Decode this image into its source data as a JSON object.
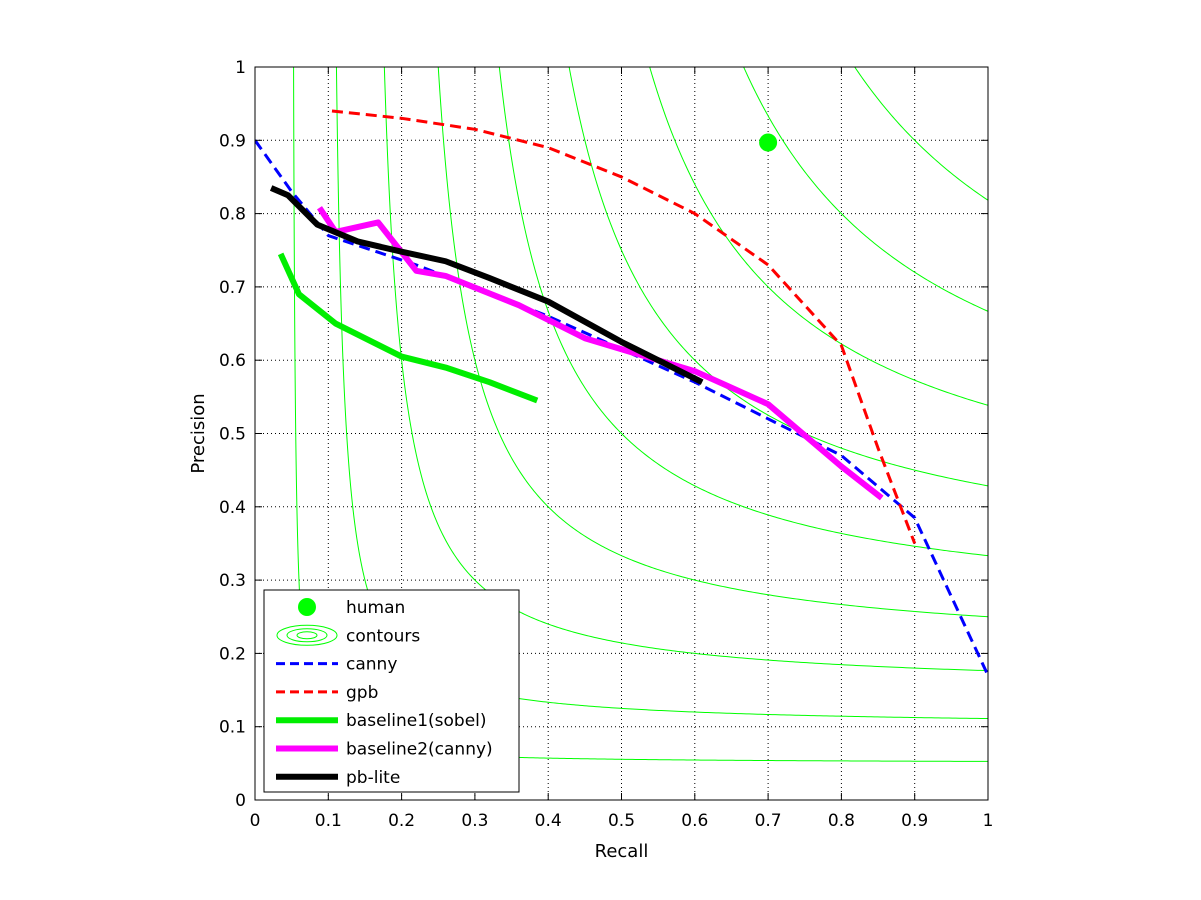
{
  "chart_data": {
    "type": "line",
    "xlabel": "Recall",
    "ylabel": "Precision",
    "xlim": [
      0,
      1
    ],
    "ylim": [
      0,
      1
    ],
    "grid": true,
    "legend_position": "bottom-left",
    "x_ticks": [
      "0",
      "0.1",
      "0.2",
      "0.3",
      "0.4",
      "0.5",
      "0.6",
      "0.7",
      "0.8",
      "0.9",
      "1"
    ],
    "y_ticks": [
      "0",
      "0.1",
      "0.2",
      "0.3",
      "0.4",
      "0.5",
      "0.6",
      "0.7",
      "0.8",
      "0.9",
      "1"
    ],
    "human": {
      "label": "human",
      "recall": 0.7,
      "precision": 0.897,
      "color": "#00ff00"
    },
    "contours": {
      "label": "contours",
      "color": "#00ff00",
      "f_values": [
        0.1,
        0.2,
        0.3,
        0.4,
        0.5,
        0.6,
        0.7,
        0.8,
        0.9
      ]
    },
    "series": [
      {
        "name": "canny",
        "color": "#0000ff",
        "style": "dashed",
        "width": 3,
        "recall": [
          0.0,
          0.05,
          0.1,
          0.22,
          0.4,
          0.6,
          0.8,
          0.9,
          1.0
        ],
        "precision": [
          0.9,
          0.83,
          0.77,
          0.73,
          0.66,
          0.57,
          0.47,
          0.385,
          0.17
        ]
      },
      {
        "name": "gpb",
        "color": "#ff0000",
        "style": "dashed",
        "width": 3,
        "recall": [
          0.105,
          0.2,
          0.3,
          0.4,
          0.5,
          0.6,
          0.7,
          0.8,
          0.85,
          0.9
        ],
        "precision": [
          0.94,
          0.93,
          0.915,
          0.89,
          0.85,
          0.8,
          0.73,
          0.62,
          0.48,
          0.35
        ]
      },
      {
        "name": "baseline1(sobel)",
        "color": "#00ee00",
        "style": "solid",
        "width": 6,
        "recall": [
          0.035,
          0.06,
          0.11,
          0.2,
          0.26,
          0.32,
          0.385
        ],
        "precision": [
          0.745,
          0.69,
          0.65,
          0.605,
          0.59,
          0.57,
          0.545
        ]
      },
      {
        "name": "baseline2(canny)",
        "color": "#ff00ff",
        "style": "solid",
        "width": 6,
        "recall": [
          0.088,
          0.11,
          0.168,
          0.22,
          0.26,
          0.36,
          0.45,
          0.6,
          0.7,
          0.8,
          0.855
        ],
        "precision": [
          0.808,
          0.775,
          0.788,
          0.722,
          0.715,
          0.675,
          0.63,
          0.585,
          0.54,
          0.455,
          0.412
        ]
      },
      {
        "name": "pb-lite",
        "color": "#000000",
        "style": "solid",
        "width": 6,
        "recall": [
          0.022,
          0.045,
          0.085,
          0.14,
          0.2,
          0.26,
          0.32,
          0.4,
          0.5,
          0.61
        ],
        "precision": [
          0.835,
          0.825,
          0.785,
          0.762,
          0.748,
          0.735,
          0.712,
          0.68,
          0.625,
          0.57
        ]
      }
    ]
  }
}
